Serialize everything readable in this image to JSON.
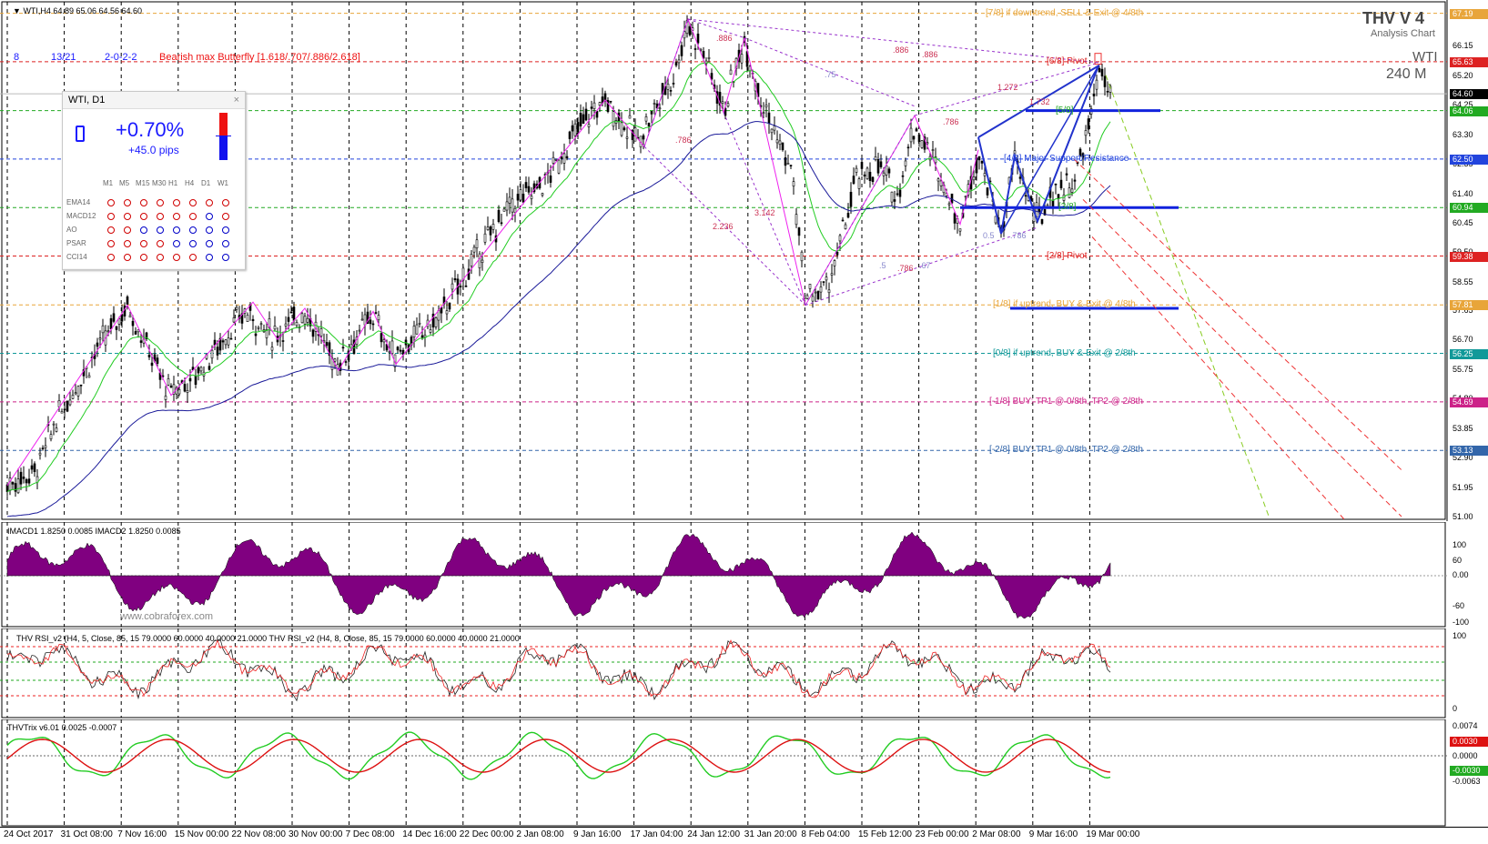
{
  "symbol_line": "WTI,H4  64.89 65.06 64.56 64.60",
  "brand": {
    "title": "THV V 4",
    "subtitle": "Analysis Chart",
    "instrument": "WTI",
    "timeframe": "240 M"
  },
  "pattern_labels": {
    "n1": "8",
    "n2": "13/21",
    "n3": "2-0-2-2",
    "pattern": "Bearish max Butterfly [1.618/.707/.886/2.618]"
  },
  "murrey": [
    {
      "text": "[7/8] if downtrend, SELL & Exit @ 4/8th",
      "price": "67.19",
      "color": "#e8a53a"
    },
    {
      "text": "[6/8] Pivot",
      "price": "65.63",
      "color": "#dd2222"
    },
    {
      "text": "[5/8]",
      "price": "64.06",
      "color": "#22aa22"
    },
    {
      "text": "[4/8] Major Support/Resistance",
      "price": "62.50",
      "color": "#2244dd"
    },
    {
      "text": "[3/8]",
      "price": "60.94",
      "color": "#22aa22"
    },
    {
      "text": "[2/8] Pivot",
      "price": "59.38",
      "color": "#dd2222"
    },
    {
      "text": "[1/8] if uptrend, BUY & Exit @ 4/8th",
      "price": "57.81",
      "color": "#e8a53a"
    },
    {
      "text": "[0/8] if uptrend, BUY & Exit @ 2/8th",
      "price": "56.25",
      "color": "#119999"
    },
    {
      "text": "[-1/8] BUY: TP1 @ 0/8th, TP2 @ 2/8th",
      "price": "54.69",
      "color": "#cc2288"
    },
    {
      "text": "[-2/8] BUY: TP1 @ 0/8th, TP2 @ 2/8th",
      "price": "53.13",
      "color": "#3366aa"
    }
  ],
  "current_price": "64.60",
  "axis_prices": [
    "66.15",
    "65.20",
    "64.25",
    "63.30",
    "62.35",
    "61.40",
    "60.45",
    "59.50",
    "58.55",
    "57.65",
    "56.70",
    "55.75",
    "54.80",
    "53.85",
    "52.90",
    "51.95",
    "51.00"
  ],
  "widget": {
    "title": "WTI, D1",
    "close": "×",
    "change": "+0.70%",
    "pips": "+45.0 pips",
    "timeframes": [
      "M1",
      "M5",
      "M15",
      "M30",
      "H1",
      "H4",
      "D1",
      "W1"
    ],
    "indicators": [
      {
        "name": "EMA14",
        "dots": [
          "r",
          "r",
          "r",
          "r",
          "r",
          "r",
          "r",
          "r"
        ]
      },
      {
        "name": "MACD12",
        "dots": [
          "r",
          "r",
          "r",
          "r",
          "r",
          "r",
          "b",
          "r"
        ]
      },
      {
        "name": "AO",
        "dots": [
          "r",
          "r",
          "b",
          "b",
          "b",
          "b",
          "b",
          "b"
        ]
      },
      {
        "name": "PSAR",
        "dots": [
          "r",
          "r",
          "r",
          "r",
          "b",
          "b",
          "b",
          "b"
        ]
      },
      {
        "name": "CCI14",
        "dots": [
          "r",
          "r",
          "r",
          "r",
          "r",
          "r",
          "b",
          "b"
        ]
      }
    ]
  },
  "fib_labels": [
    ".886",
    ".886",
    ".886",
    "1.272",
    "1.732",
    ".786",
    ".786",
    "2.236",
    "3.142",
    ".786",
    ".75",
    ".5",
    "0.5",
    ".786",
    ".67"
  ],
  "macd": {
    "label": "IMACD1 1.8250 0.0085  IMACD2 1.8250 0.0085",
    "axis": [
      "100",
      "60",
      "0.00",
      "-60",
      "-100"
    ],
    "watermark": "www.cobraforex.com"
  },
  "rsi": {
    "label": "THV RSI_v2  (H4, 5, Close, 85, 15 79.0000 60.0000 40.0000 21.0000   THV RSI_v2  (H4, 8, Close, 85, 15 79.0000 60.0000 40.0000 21.0000",
    "axis": [
      "100",
      "0"
    ]
  },
  "trix": {
    "label": "THVTrix v6.01 0.0025 -0.0007",
    "axis": [
      "0.0074",
      "0.0030",
      "0.0000",
      "-0.0030",
      "-0.0063"
    ]
  },
  "dates": [
    "24 Oct 2017",
    "31 Oct 08:00",
    "7 Nov 16:00",
    "15 Nov 00:00",
    "22 Nov 08:00",
    "30 Nov 00:00",
    "7 Dec 08:00",
    "14 Dec 16:00",
    "22 Dec 00:00",
    "2 Jan 08:00",
    "9 Jan 16:00",
    "17 Jan 04:00",
    "24 Jan 12:00",
    "31 Jan 20:00",
    "8 Feb 04:00",
    "15 Feb 12:00",
    "23 Feb 00:00",
    "2 Mar 08:00",
    "9 Mar 16:00",
    "19 Mar 00:00"
  ]
}
